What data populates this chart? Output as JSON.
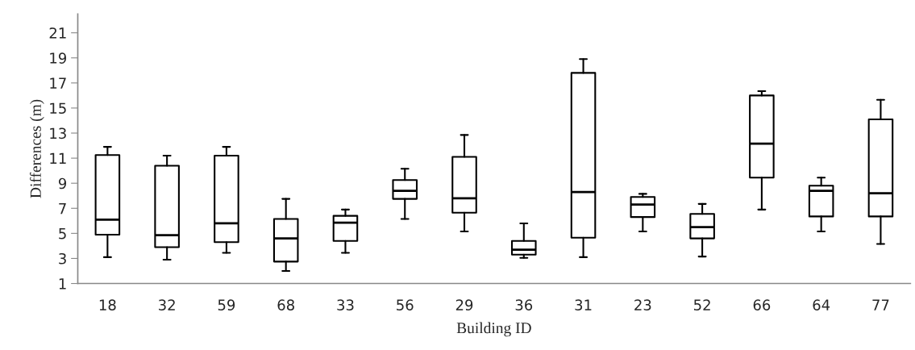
{
  "chart_data": {
    "type": "box",
    "xlabel": "Building ID",
    "ylabel": "Differences (m)",
    "categories": [
      "18",
      "32",
      "59",
      "68",
      "33",
      "56",
      "29",
      "36",
      "31",
      "23",
      "52",
      "66",
      "64",
      "77"
    ],
    "boxes": [
      {
        "low": 3.1,
        "q1": 4.9,
        "median": 6.1,
        "q3": 11.25,
        "high": 11.9
      },
      {
        "low": 2.9,
        "q1": 3.9,
        "median": 4.85,
        "q3": 10.4,
        "high": 11.2
      },
      {
        "low": 3.45,
        "q1": 4.3,
        "median": 5.8,
        "q3": 11.2,
        "high": 11.9
      },
      {
        "low": 2.0,
        "q1": 2.75,
        "median": 4.6,
        "q3": 6.15,
        "high": 7.75
      },
      {
        "low": 3.45,
        "q1": 4.4,
        "median": 5.85,
        "q3": 6.4,
        "high": 6.9
      },
      {
        "low": 6.15,
        "q1": 7.75,
        "median": 8.4,
        "q3": 9.25,
        "high": 10.15
      },
      {
        "low": 5.15,
        "q1": 6.65,
        "median": 7.8,
        "q3": 11.1,
        "high": 12.85
      },
      {
        "low": 3.05,
        "q1": 3.3,
        "median": 3.7,
        "q3": 4.4,
        "high": 5.8
      },
      {
        "low": 3.1,
        "q1": 4.65,
        "median": 8.3,
        "q3": 17.8,
        "high": 18.9
      },
      {
        "low": 5.15,
        "q1": 6.3,
        "median": 7.3,
        "q3": 7.9,
        "high": 8.15
      },
      {
        "low": 3.15,
        "q1": 4.6,
        "median": 5.5,
        "q3": 6.55,
        "high": 7.35
      },
      {
        "low": 6.9,
        "q1": 9.45,
        "median": 12.15,
        "q3": 16.0,
        "high": 16.35
      },
      {
        "low": 5.15,
        "q1": 6.35,
        "median": 8.4,
        "q3": 8.8,
        "high": 9.45
      },
      {
        "low": 4.15,
        "q1": 6.35,
        "median": 8.2,
        "q3": 14.1,
        "high": 15.65
      }
    ],
    "ylim": [
      1,
      22.5
    ],
    "yticks": [
      1,
      3,
      5,
      7,
      9,
      11,
      13,
      15,
      17,
      19,
      21
    ],
    "grid": false,
    "legend": false
  }
}
